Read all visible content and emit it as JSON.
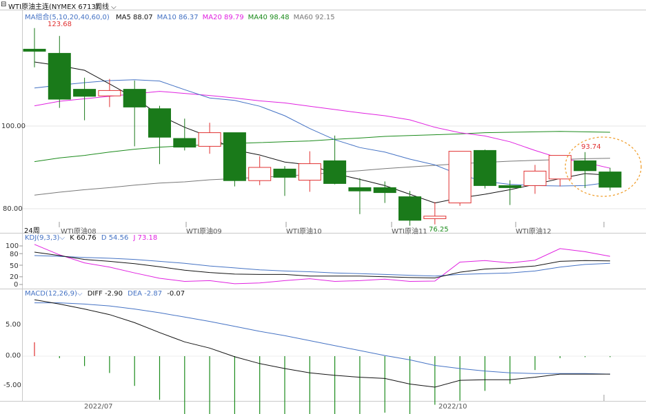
{
  "header": {
    "title": "WTI原油主连(NYMEX 6713)",
    "period": "周线"
  },
  "ma_legend": {
    "name": "MA组合(5,10,20,40,60,0)",
    "items": [
      {
        "label": "MA5 88.07",
        "color": "#111111"
      },
      {
        "label": "MA10 86.37",
        "color": "#4472c4"
      },
      {
        "label": "MA20 89.79",
        "color": "#e020e0"
      },
      {
        "label": "MA40 98.48",
        "color": "#1a8a1a"
      },
      {
        "label": "MA60 92.15",
        "color": "#777777"
      }
    ]
  },
  "price_axis": {
    "ticks": [
      "100.00",
      "80.00"
    ]
  },
  "annotations": {
    "high": "123.68",
    "low": "76.25",
    "recent_high": "93.74"
  },
  "period_label": "24周",
  "contract_labels": [
    "WTI原油08",
    "WTI原油09",
    "WTI原油10",
    "WTI原油11",
    "WTI原油12"
  ],
  "kdj": {
    "name": "KDJ(9,3,3)",
    "k": "K 60.76",
    "d": "D 54.56",
    "j": "J 73.18",
    "colors": {
      "k": "#111111",
      "d": "#4472c4",
      "j": "#e020e0"
    },
    "ticks": [
      "100",
      "80",
      "50",
      "20",
      "0"
    ]
  },
  "macd": {
    "name": "MACD(12,26,9)",
    "diff": "DIFF -2.90",
    "dea": "DEA -2.87",
    "macd": "-0.07",
    "ticks": [
      "5.00",
      "0.00",
      "-5.00"
    ]
  },
  "date_axis": [
    "2022/07",
    "2022/10"
  ],
  "chart_data": {
    "type": "candlestick",
    "candles": [
      {
        "o": 118.6,
        "c": 118.1,
        "h": 123.7,
        "l": 114.2
      },
      {
        "o": 117.6,
        "c": 106.5,
        "h": 121.8,
        "l": 104.4
      },
      {
        "o": 108.9,
        "c": 107.2,
        "h": 111.7,
        "l": 101.4
      },
      {
        "o": 107.3,
        "c": 108.6,
        "h": 111.4,
        "l": 104.6
      },
      {
        "o": 108.9,
        "c": 104.6,
        "h": 111.0,
        "l": 95.1
      },
      {
        "o": 104.2,
        "c": 97.3,
        "h": 104.9,
        "l": 90.8
      },
      {
        "o": 97.0,
        "c": 94.9,
        "h": 101.8,
        "l": 94.1
      },
      {
        "o": 95.1,
        "c": 98.4,
        "h": 100.8,
        "l": 93.3
      },
      {
        "o": 98.4,
        "c": 86.8,
        "h": 98.4,
        "l": 85.4
      },
      {
        "o": 86.8,
        "c": 90.0,
        "h": 92.7,
        "l": 85.7
      },
      {
        "o": 89.6,
        "c": 87.6,
        "h": 90.3,
        "l": 83.1
      },
      {
        "o": 86.9,
        "c": 90.9,
        "h": 93.9,
        "l": 84.1
      },
      {
        "o": 91.6,
        "c": 86.1,
        "h": 97.7,
        "l": 85.9
      },
      {
        "o": 85.1,
        "c": 84.3,
        "h": 87.4,
        "l": 78.7
      },
      {
        "o": 85.1,
        "c": 83.9,
        "h": 86.6,
        "l": 81.4
      },
      {
        "o": 82.9,
        "c": 77.2,
        "h": 84.3,
        "l": 75.9
      },
      {
        "o": 77.6,
        "c": 78.2,
        "h": 81.6,
        "l": 76.2
      },
      {
        "o": 81.4,
        "c": 93.9,
        "h": 93.9,
        "l": 80.7
      },
      {
        "o": 94.1,
        "c": 85.6,
        "h": 94.3,
        "l": 84.9
      },
      {
        "o": 85.6,
        "c": 85.1,
        "h": 86.9,
        "l": 80.9
      },
      {
        "o": 85.6,
        "c": 89.1,
        "h": 90.6,
        "l": 83.6
      },
      {
        "o": 87.2,
        "c": 92.9,
        "h": 92.9,
        "l": 85.4
      },
      {
        "o": 91.6,
        "c": 89.2,
        "h": 93.7,
        "l": 85.0
      },
      {
        "o": 88.9,
        "c": 85.2,
        "h": 89.9,
        "l": 84.4
      }
    ],
    "ma5": [
      115.5,
      114.6,
      113.5,
      110.2,
      106.8,
      102.6,
      99.7,
      97.4,
      94.2,
      93.0,
      91.3,
      90.6,
      88.5,
      87.1,
      85.6,
      83.5,
      81.4,
      82.6,
      83.5,
      84.6,
      85.9,
      87.3,
      88.5,
      88.1
    ],
    "ma10": [
      109.2,
      109.9,
      110.5,
      111.0,
      111.2,
      110.9,
      108.8,
      106.8,
      106.2,
      104.8,
      102.5,
      99.4,
      96.7,
      94.8,
      93.7,
      92.0,
      90.6,
      88.2,
      86.6,
      85.9,
      85.6,
      85.5,
      85.6,
      86.4
    ],
    "ma20": [
      104.9,
      106.0,
      106.6,
      107.2,
      107.8,
      108.4,
      107.9,
      107.4,
      106.8,
      106.1,
      105.6,
      104.8,
      104.0,
      103.2,
      102.5,
      101.5,
      99.7,
      98.4,
      97.6,
      96.2,
      94.1,
      92.2,
      91.2,
      89.8
    ],
    "ma40": [
      91.4,
      92.3,
      92.9,
      93.7,
      94.4,
      94.9,
      95.2,
      95.5,
      95.8,
      96.0,
      96.2,
      96.4,
      96.8,
      97.1,
      97.5,
      97.7,
      97.9,
      98.1,
      98.4,
      98.5,
      98.6,
      98.7,
      98.6,
      98.5
    ],
    "ma60": [
      83.3,
      84.0,
      84.6,
      85.1,
      85.7,
      86.2,
      86.5,
      87.0,
      87.3,
      87.6,
      87.9,
      88.3,
      88.8,
      89.2,
      89.7,
      90.1,
      90.5,
      90.9,
      91.2,
      91.5,
      91.7,
      91.9,
      92.1,
      92.2
    ],
    "kdj_k": [
      84,
      75,
      65,
      60,
      54,
      46,
      37,
      31,
      27,
      26,
      26,
      22,
      22,
      22,
      20,
      18,
      17,
      32,
      40,
      43,
      48,
      60,
      62,
      61
    ],
    "kdj_d": [
      75,
      73,
      70,
      68,
      65,
      60,
      55,
      48,
      43,
      38,
      35,
      33,
      30,
      28,
      26,
      24,
      22,
      26,
      28,
      30,
      35,
      45,
      52,
      55
    ],
    "kdj_j": [
      104,
      77,
      56,
      45,
      30,
      16,
      8,
      10,
      2,
      4,
      10,
      15,
      8,
      10,
      14,
      8,
      9,
      58,
      62,
      56,
      63,
      93,
      85,
      73
    ],
    "macd_diff": [
      9.1,
      8.4,
      7.6,
      6.7,
      5.4,
      3.8,
      2.3,
      1.3,
      -0.1,
      -1.2,
      -2.0,
      -2.7,
      -3.1,
      -3.4,
      -3.6,
      -4.5,
      -5.0,
      -3.9,
      -3.8,
      -3.8,
      -3.4,
      -2.9,
      -2.9,
      -2.9
    ],
    "macd_dea": [
      8.6,
      8.6,
      8.4,
      8.1,
      7.6,
      7.0,
      6.3,
      5.6,
      4.8,
      4.0,
      3.3,
      2.5,
      1.7,
      0.9,
      0.1,
      -0.6,
      -1.5,
      -2.0,
      -2.4,
      -2.7,
      -2.8,
      -2.8,
      -2.8,
      -2.9
    ],
    "macd_hist": [
      1.4,
      -0.2,
      -1.0,
      -1.7,
      -3.0,
      -4.4,
      -5.9,
      -6.0,
      -6.8,
      -7.0,
      -6.9,
      -6.7,
      -6.0,
      -5.9,
      -5.7,
      -5.9,
      -4.9,
      -4.5,
      -3.5,
      -2.8,
      -1.4,
      -0.2,
      -0.1,
      -0.1
    ]
  }
}
